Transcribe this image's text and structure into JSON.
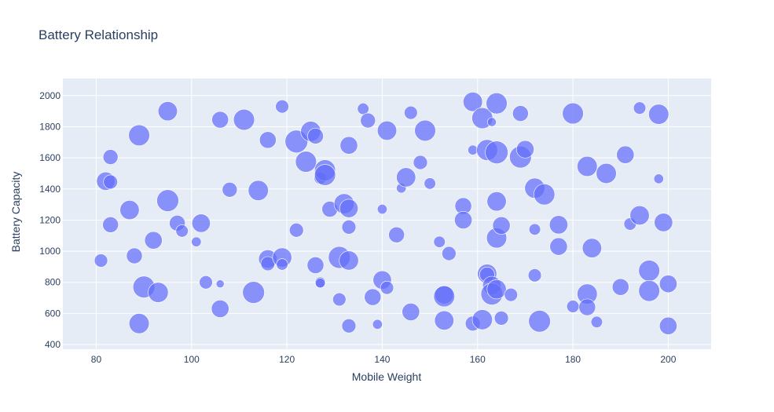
{
  "chart_data": {
    "type": "scatter",
    "title": "Battery Relationship",
    "xlabel": "Mobile Weight",
    "ylabel": "Battery Capacity",
    "xlim": [
      73,
      209
    ],
    "ylim": [
      370,
      2110
    ],
    "xticks": [
      80,
      100,
      120,
      140,
      160,
      180,
      200
    ],
    "yticks": [
      400,
      600,
      800,
      1000,
      1200,
      1400,
      1600,
      1800,
      2000
    ],
    "grid": true,
    "legend": "none",
    "colors": {
      "plot_bg": "#e5ecf6",
      "marker": "#636efa",
      "grid": "#ffffff",
      "text": "#2a3f5f"
    },
    "points": [
      {
        "x": 81,
        "y": 940,
        "size": 0.4
      },
      {
        "x": 82,
        "y": 1450,
        "size": 0.7
      },
      {
        "x": 83,
        "y": 1605,
        "size": 0.5
      },
      {
        "x": 83,
        "y": 1445,
        "size": 0.45
      },
      {
        "x": 83,
        "y": 1170,
        "size": 0.55
      },
      {
        "x": 87,
        "y": 1265,
        "size": 0.75
      },
      {
        "x": 88,
        "y": 970,
        "size": 0.55
      },
      {
        "x": 89,
        "y": 1745,
        "size": 0.85
      },
      {
        "x": 89,
        "y": 535,
        "size": 0.8
      },
      {
        "x": 90,
        "y": 770,
        "size": 0.9
      },
      {
        "x": 92,
        "y": 1070,
        "size": 0.65
      },
      {
        "x": 93,
        "y": 735,
        "size": 0.8
      },
      {
        "x": 95,
        "y": 1900,
        "size": 0.75
      },
      {
        "x": 95,
        "y": 1325,
        "size": 0.9
      },
      {
        "x": 97,
        "y": 1180,
        "size": 0.55
      },
      {
        "x": 98,
        "y": 1130,
        "size": 0.35
      },
      {
        "x": 101,
        "y": 1060,
        "size": 0.2
      },
      {
        "x": 102,
        "y": 1180,
        "size": 0.7
      },
      {
        "x": 103,
        "y": 800,
        "size": 0.4
      },
      {
        "x": 106,
        "y": 1845,
        "size": 0.6
      },
      {
        "x": 106,
        "y": 790,
        "size": 0.1
      },
      {
        "x": 106,
        "y": 630,
        "size": 0.65
      },
      {
        "x": 108,
        "y": 1395,
        "size": 0.5
      },
      {
        "x": 111,
        "y": 1845,
        "size": 0.85
      },
      {
        "x": 113,
        "y": 735,
        "size": 0.9
      },
      {
        "x": 114,
        "y": 1390,
        "size": 0.8
      },
      {
        "x": 116,
        "y": 1715,
        "size": 0.6
      },
      {
        "x": 116,
        "y": 950,
        "size": 0.7
      },
      {
        "x": 116,
        "y": 920,
        "size": 0.45
      },
      {
        "x": 119,
        "y": 1930,
        "size": 0.4
      },
      {
        "x": 119,
        "y": 960,
        "size": 0.75
      },
      {
        "x": 119,
        "y": 915,
        "size": 0.3
      },
      {
        "x": 122,
        "y": 1705,
        "size": 0.95
      },
      {
        "x": 122,
        "y": 1135,
        "size": 0.45
      },
      {
        "x": 124,
        "y": 1575,
        "size": 0.85
      },
      {
        "x": 125,
        "y": 1770,
        "size": 0.8
      },
      {
        "x": 126,
        "y": 1740,
        "size": 0.55
      },
      {
        "x": 126,
        "y": 910,
        "size": 0.6
      },
      {
        "x": 127,
        "y": 1470,
        "size": 0.35
      },
      {
        "x": 127,
        "y": 800,
        "size": 0.25
      },
      {
        "x": 127,
        "y": 795,
        "size": 0.2
      },
      {
        "x": 128,
        "y": 1520,
        "size": 0.85
      },
      {
        "x": 128,
        "y": 1490,
        "size": 0.85
      },
      {
        "x": 129,
        "y": 1270,
        "size": 0.55
      },
      {
        "x": 131,
        "y": 960,
        "size": 0.9
      },
      {
        "x": 131,
        "y": 690,
        "size": 0.4
      },
      {
        "x": 132,
        "y": 1305,
        "size": 0.8
      },
      {
        "x": 133,
        "y": 1680,
        "size": 0.65
      },
      {
        "x": 133,
        "y": 1275,
        "size": 0.7
      },
      {
        "x": 133,
        "y": 1155,
        "size": 0.45
      },
      {
        "x": 133,
        "y": 940,
        "size": 0.75
      },
      {
        "x": 133,
        "y": 520,
        "size": 0.45
      },
      {
        "x": 136,
        "y": 1915,
        "size": 0.3
      },
      {
        "x": 137,
        "y": 1840,
        "size": 0.5
      },
      {
        "x": 138,
        "y": 705,
        "size": 0.6
      },
      {
        "x": 139,
        "y": 530,
        "size": 0.2
      },
      {
        "x": 140,
        "y": 1270,
        "size": 0.2
      },
      {
        "x": 140,
        "y": 815,
        "size": 0.7
      },
      {
        "x": 141,
        "y": 1775,
        "size": 0.75
      },
      {
        "x": 141,
        "y": 765,
        "size": 0.4
      },
      {
        "x": 143,
        "y": 1105,
        "size": 0.55
      },
      {
        "x": 144,
        "y": 1405,
        "size": 0.2
      },
      {
        "x": 145,
        "y": 1475,
        "size": 0.75
      },
      {
        "x": 146,
        "y": 1890,
        "size": 0.4
      },
      {
        "x": 146,
        "y": 610,
        "size": 0.65
      },
      {
        "x": 148,
        "y": 1570,
        "size": 0.45
      },
      {
        "x": 149,
        "y": 1775,
        "size": 0.85
      },
      {
        "x": 150,
        "y": 1435,
        "size": 0.3
      },
      {
        "x": 152,
        "y": 1060,
        "size": 0.3
      },
      {
        "x": 153,
        "y": 720,
        "size": 0.7
      },
      {
        "x": 153,
        "y": 710,
        "size": 0.85
      },
      {
        "x": 153,
        "y": 555,
        "size": 0.75
      },
      {
        "x": 154,
        "y": 985,
        "size": 0.45
      },
      {
        "x": 157,
        "y": 1290,
        "size": 0.6
      },
      {
        "x": 157,
        "y": 1200,
        "size": 0.65
      },
      {
        "x": 159,
        "y": 1960,
        "size": 0.75
      },
      {
        "x": 159,
        "y": 1650,
        "size": 0.2
      },
      {
        "x": 159,
        "y": 535,
        "size": 0.5
      },
      {
        "x": 161,
        "y": 1855,
        "size": 0.85
      },
      {
        "x": 161,
        "y": 560,
        "size": 0.8
      },
      {
        "x": 162,
        "y": 1650,
        "size": 0.85
      },
      {
        "x": 162,
        "y": 855,
        "size": 0.75
      },
      {
        "x": 162,
        "y": 850,
        "size": 0.5
      },
      {
        "x": 163,
        "y": 1830,
        "size": 0.15
      },
      {
        "x": 163,
        "y": 780,
        "size": 0.7
      },
      {
        "x": 163,
        "y": 725,
        "size": 0.9
      },
      {
        "x": 164,
        "y": 1950,
        "size": 0.85
      },
      {
        "x": 164,
        "y": 1635,
        "size": 0.95
      },
      {
        "x": 164,
        "y": 1320,
        "size": 0.75
      },
      {
        "x": 164,
        "y": 1085,
        "size": 0.8
      },
      {
        "x": 164,
        "y": 755,
        "size": 0.75
      },
      {
        "x": 165,
        "y": 1165,
        "size": 0.65
      },
      {
        "x": 165,
        "y": 570,
        "size": 0.45
      },
      {
        "x": 167,
        "y": 720,
        "size": 0.4
      },
      {
        "x": 169,
        "y": 1885,
        "size": 0.55
      },
      {
        "x": 169,
        "y": 1605,
        "size": 0.9
      },
      {
        "x": 170,
        "y": 1655,
        "size": 0.65
      },
      {
        "x": 172,
        "y": 1405,
        "size": 0.8
      },
      {
        "x": 172,
        "y": 1140,
        "size": 0.3
      },
      {
        "x": 172,
        "y": 845,
        "size": 0.4
      },
      {
        "x": 173,
        "y": 550,
        "size": 0.9
      },
      {
        "x": 174,
        "y": 1365,
        "size": 0.85
      },
      {
        "x": 177,
        "y": 1170,
        "size": 0.7
      },
      {
        "x": 177,
        "y": 1030,
        "size": 0.65
      },
      {
        "x": 180,
        "y": 1885,
        "size": 0.85
      },
      {
        "x": 180,
        "y": 645,
        "size": 0.35
      },
      {
        "x": 183,
        "y": 1545,
        "size": 0.8
      },
      {
        "x": 183,
        "y": 725,
        "size": 0.8
      },
      {
        "x": 183,
        "y": 640,
        "size": 0.6
      },
      {
        "x": 184,
        "y": 1020,
        "size": 0.75
      },
      {
        "x": 185,
        "y": 545,
        "size": 0.3
      },
      {
        "x": 187,
        "y": 1500,
        "size": 0.8
      },
      {
        "x": 190,
        "y": 770,
        "size": 0.6
      },
      {
        "x": 191,
        "y": 1620,
        "size": 0.65
      },
      {
        "x": 192,
        "y": 1175,
        "size": 0.35
      },
      {
        "x": 194,
        "y": 1920,
        "size": 0.35
      },
      {
        "x": 194,
        "y": 1230,
        "size": 0.75
      },
      {
        "x": 196,
        "y": 875,
        "size": 0.85
      },
      {
        "x": 196,
        "y": 745,
        "size": 0.85
      },
      {
        "x": 198,
        "y": 1880,
        "size": 0.8
      },
      {
        "x": 198,
        "y": 1465,
        "size": 0.2
      },
      {
        "x": 199,
        "y": 1185,
        "size": 0.7
      },
      {
        "x": 200,
        "y": 790,
        "size": 0.65
      },
      {
        "x": 200,
        "y": 520,
        "size": 0.65
      }
    ]
  }
}
